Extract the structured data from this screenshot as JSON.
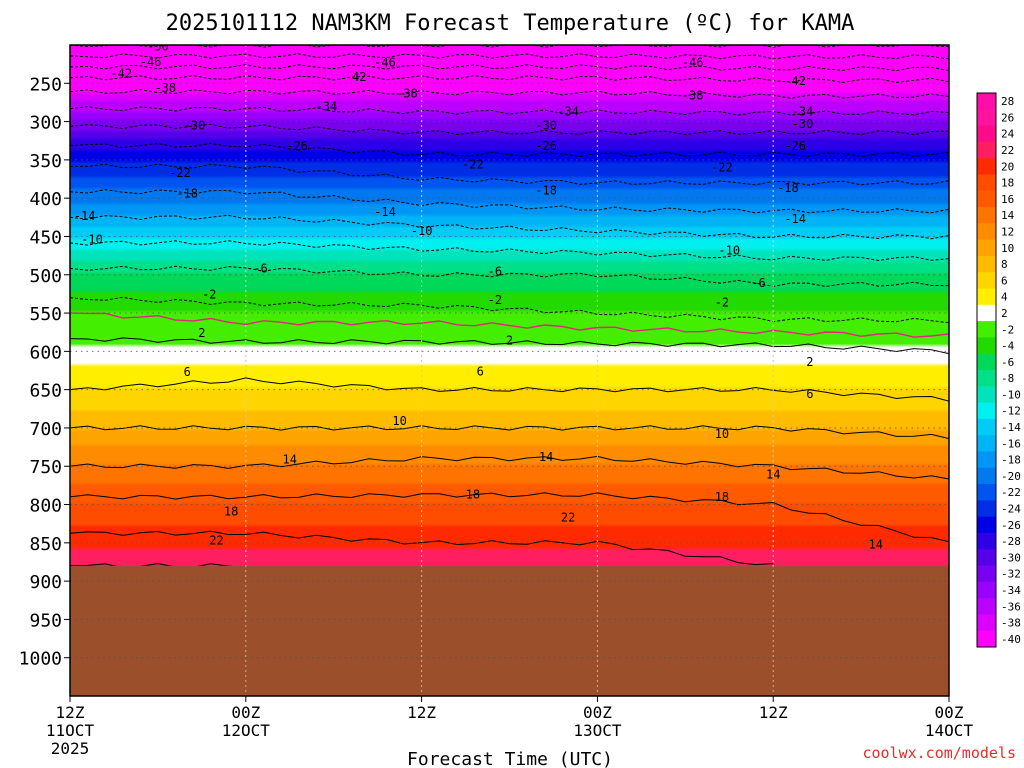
{
  "chart_data": {
    "type": "heatmap",
    "title": "2025101112 NAM3KM Forecast Temperature (ºC) for KAMA",
    "xlabel": "Forecast Time (UTC)",
    "ylabel": "",
    "credit": "coolwx.com/models",
    "x_range_hours": [
      0,
      60
    ],
    "y_range_hpa": [
      200,
      1050
    ],
    "surface_pressure_hpa": 880,
    "x_ticks": [
      {
        "hour": 0,
        "time": "12Z",
        "date": "11OCT",
        "year": "2025"
      },
      {
        "hour": 12,
        "time": "00Z",
        "date": "12OCT",
        "year": ""
      },
      {
        "hour": 24,
        "time": "12Z",
        "date": "",
        "year": ""
      },
      {
        "hour": 36,
        "time": "00Z",
        "date": "13OCT",
        "year": ""
      },
      {
        "hour": 48,
        "time": "12Z",
        "date": "",
        "year": ""
      },
      {
        "hour": 60,
        "time": "00Z",
        "date": "14OCT",
        "year": ""
      }
    ],
    "y_ticks": [
      "250",
      "300",
      "350",
      "400",
      "450",
      "500",
      "550",
      "600",
      "650",
      "700",
      "750",
      "800",
      "850",
      "900",
      "950",
      "1000"
    ],
    "colorbar_labels": [
      "28",
      "26",
      "24",
      "22",
      "20",
      "18",
      "16",
      "14",
      "12",
      "10",
      "8",
      "6",
      "4",
      "2",
      "-2",
      "-4",
      "-6",
      "-8",
      "-10",
      "-12",
      "-14",
      "-16",
      "-18",
      "-20",
      "-22",
      "-24",
      "-26",
      "-28",
      "-30",
      "-32",
      "-34",
      "-36",
      "-38",
      "-40"
    ],
    "colorbar_colors": [
      "#ff0da8",
      "#ff139f",
      "#ff0a88",
      "#ff1f60",
      "#ff2a00",
      "#ff4d00",
      "#ff5a00",
      "#ff7300",
      "#ff8c00",
      "#ffa300",
      "#ffbb00",
      "#ffd500",
      "#ffee00",
      "#ffffff",
      "#44ee00",
      "#22d900",
      "#00d85a",
      "#00e089",
      "#00e3bb",
      "#00f0f0",
      "#00ccf5",
      "#00b4f5",
      "#0096f5",
      "#0078f0",
      "#0055f0",
      "#002ee6",
      "#0000e6",
      "#2e00e8",
      "#5500e8",
      "#7a00f0",
      "#9a00ff",
      "#bb00ff",
      "#dd00ff",
      "#ff00ff"
    ],
    "levels_hpa": [
      200,
      250,
      300,
      350,
      400,
      450,
      500,
      550,
      600,
      650,
      700,
      750,
      800,
      850,
      880
    ],
    "temperature_profiles_c": [
      {
        "hour": 0,
        "temps": [
          -54,
          -40,
          -31,
          -23,
          -17,
          -11,
          -5,
          0,
          3,
          6,
          10,
          14,
          19,
          23,
          26
        ]
      },
      {
        "hour": 12,
        "temps": [
          -54,
          -40,
          -31,
          -23,
          -17,
          -11,
          -5,
          -1,
          3,
          7,
          10,
          14,
          19,
          23,
          26
        ]
      },
      {
        "hour": 24,
        "temps": [
          -54,
          -40,
          -32,
          -25,
          -19,
          -12,
          -6,
          -1,
          3,
          6,
          10,
          15,
          19,
          22,
          24
        ]
      },
      {
        "hour": 36,
        "temps": [
          -54,
          -40,
          -32,
          -25,
          -20,
          -13,
          -6,
          -2,
          3,
          6,
          10,
          15,
          19,
          22,
          24
        ]
      },
      {
        "hour": 48,
        "temps": [
          -54,
          -41,
          -32,
          -25,
          -20,
          -14,
          -7,
          -3,
          3,
          6,
          10,
          14,
          18,
          20,
          22
        ]
      },
      {
        "hour": 60,
        "temps": [
          -54,
          -41,
          -32,
          -25,
          -20,
          -14,
          -7,
          -3,
          2,
          5,
          9,
          13,
          16,
          18,
          21
        ]
      }
    ],
    "contour_labels": [
      {
        "text": "-50",
        "hour": 6,
        "hpa": 202
      },
      {
        "text": "-46",
        "hour": 5.5,
        "hpa": 222
      },
      {
        "text": "-46",
        "hour": 21.5,
        "hpa": 223
      },
      {
        "text": "-46",
        "hour": 42.5,
        "hpa": 223
      },
      {
        "text": "-42",
        "hour": 3.5,
        "hpa": 237
      },
      {
        "text": "-42",
        "hour": 19.5,
        "hpa": 242
      },
      {
        "text": "-42",
        "hour": 49.5,
        "hpa": 247
      },
      {
        "text": "-38",
        "hour": 6.5,
        "hpa": 256
      },
      {
        "text": "-38",
        "hour": 23,
        "hpa": 263
      },
      {
        "text": "-38",
        "hour": 42.5,
        "hpa": 266
      },
      {
        "text": "-34",
        "hour": 17.5,
        "hpa": 280
      },
      {
        "text": "-34",
        "hour": 34,
        "hpa": 287
      },
      {
        "text": "-34",
        "hour": 50,
        "hpa": 287
      },
      {
        "text": "-30",
        "hour": 8.5,
        "hpa": 305
      },
      {
        "text": "-30",
        "hour": 32.5,
        "hpa": 305
      },
      {
        "text": "-30",
        "hour": 50,
        "hpa": 303
      },
      {
        "text": "-26",
        "hour": 15.5,
        "hpa": 332
      },
      {
        "text": "-26",
        "hour": 32.5,
        "hpa": 332
      },
      {
        "text": "-26",
        "hour": 49.5,
        "hpa": 332
      },
      {
        "text": "-22",
        "hour": 7.5,
        "hpa": 367
      },
      {
        "text": "-22",
        "hour": 27.5,
        "hpa": 356
      },
      {
        "text": "-22",
        "hour": 44.5,
        "hpa": 360
      },
      {
        "text": "-18",
        "hour": 8,
        "hpa": 394
      },
      {
        "text": "-18",
        "hour": 32.5,
        "hpa": 390
      },
      {
        "text": "-18",
        "hour": 49,
        "hpa": 387
      },
      {
        "text": "-14",
        "hour": 1,
        "hpa": 423
      },
      {
        "text": "-14",
        "hour": 21.5,
        "hpa": 418
      },
      {
        "text": "-14",
        "hour": 49.5,
        "hpa": 427
      },
      {
        "text": "-10",
        "hour": 1.5,
        "hpa": 454
      },
      {
        "text": "-10",
        "hour": 24,
        "hpa": 443
      },
      {
        "text": "-10",
        "hour": 45,
        "hpa": 468
      },
      {
        "text": "-6",
        "hour": 13,
        "hpa": 492
      },
      {
        "text": "-6",
        "hour": 29,
        "hpa": 496
      },
      {
        "text": "-6",
        "hour": 47,
        "hpa": 511
      },
      {
        "text": "-2",
        "hour": 9.5,
        "hpa": 526
      },
      {
        "text": "-2",
        "hour": 29,
        "hpa": 533
      },
      {
        "text": "-2",
        "hour": 44.5,
        "hpa": 536
      },
      {
        "text": "2",
        "hour": 9,
        "hpa": 576
      },
      {
        "text": "2",
        "hour": 30,
        "hpa": 586
      },
      {
        "text": "2",
        "hour": 50.5,
        "hpa": 614
      },
      {
        "text": "6",
        "hour": 8,
        "hpa": 627
      },
      {
        "text": "6",
        "hour": 28,
        "hpa": 626
      },
      {
        "text": "6",
        "hour": 50.5,
        "hpa": 656
      },
      {
        "text": "10",
        "hour": 22.5,
        "hpa": 691
      },
      {
        "text": "10",
        "hour": 44.5,
        "hpa": 708
      },
      {
        "text": "14",
        "hour": 15,
        "hpa": 741
      },
      {
        "text": "14",
        "hour": 32.5,
        "hpa": 738
      },
      {
        "text": "14",
        "hour": 48,
        "hpa": 761
      },
      {
        "text": "18",
        "hour": 11,
        "hpa": 809
      },
      {
        "text": "18",
        "hour": 27.5,
        "hpa": 787
      },
      {
        "text": "18",
        "hour": 44.5,
        "hpa": 790
      },
      {
        "text": "22",
        "hour": 10,
        "hpa": 847
      },
      {
        "text": "22",
        "hour": 34,
        "hpa": 817
      },
      {
        "text": "14",
        "hour": 55,
        "hpa": 852
      }
    ]
  }
}
